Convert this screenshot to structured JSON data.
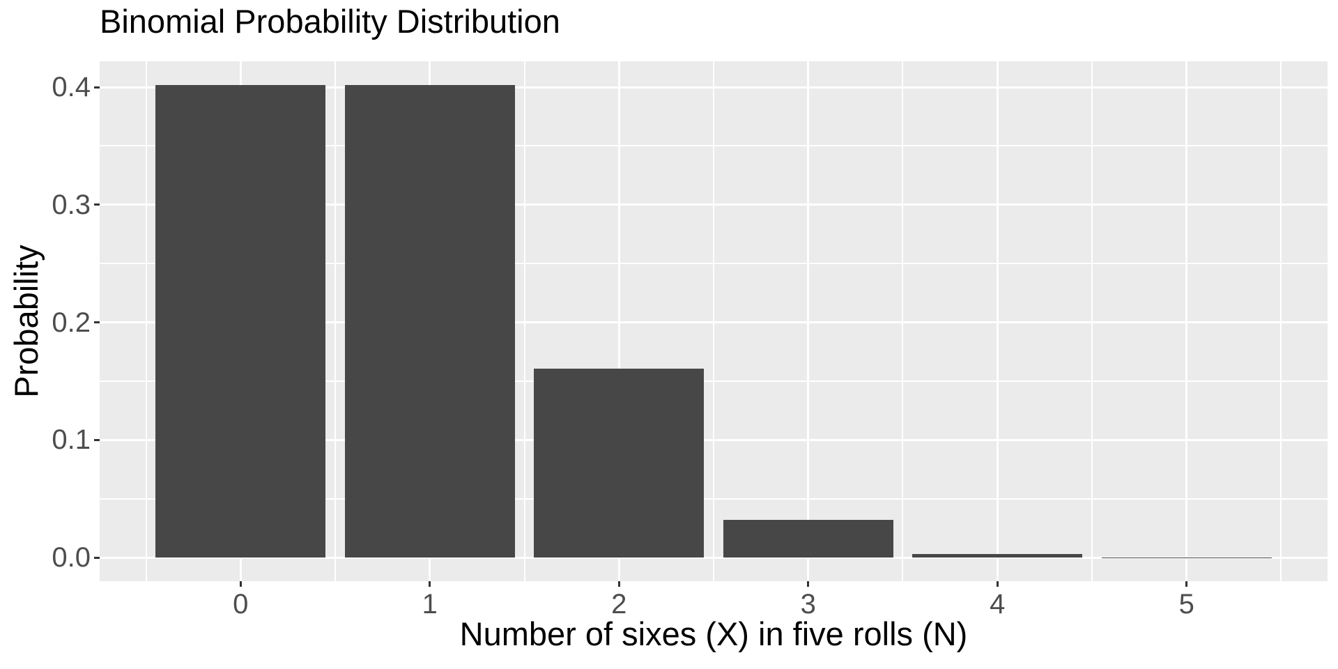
{
  "chart_data": {
    "type": "bar",
    "title": "Binomial Probability Distribution",
    "xlabel": "Number of sixes (X) in five rolls (N)",
    "ylabel": "Probability",
    "categories": [
      0,
      1,
      2,
      3,
      4,
      5
    ],
    "x_tick_labels": [
      "0",
      "1",
      "2",
      "3",
      "4",
      "5"
    ],
    "values": [
      0.401878,
      0.401878,
      0.160751,
      0.03215,
      0.003215,
      0.000129
    ],
    "y_ticks": [
      0.0,
      0.1,
      0.2,
      0.3,
      0.4
    ],
    "y_tick_labels": [
      "0.0",
      "0.1",
      "0.2",
      "0.3",
      "0.4"
    ],
    "y_minor_ticks": [
      0.05,
      0.15,
      0.25,
      0.35
    ],
    "x_minor_positions": [
      -0.5,
      0.5,
      1.5,
      2.5,
      3.5,
      4.5,
      5.5
    ],
    "xlim": [
      -0.745,
      5.745
    ],
    "ylim": [
      -0.0201,
      0.422
    ],
    "bar_width": 0.9,
    "grid": true,
    "legend": false,
    "style": "ggplot2",
    "colors": {
      "bar_fill": "#474747",
      "panel_background": "#EBEBEB",
      "gridline": "#FFFFFF",
      "tick_text": "#4D4D4D",
      "tick_mark": "#333333",
      "title_text": "#000000",
      "axis_title_text": "#000000",
      "figure_background": "#FFFFFF"
    }
  }
}
